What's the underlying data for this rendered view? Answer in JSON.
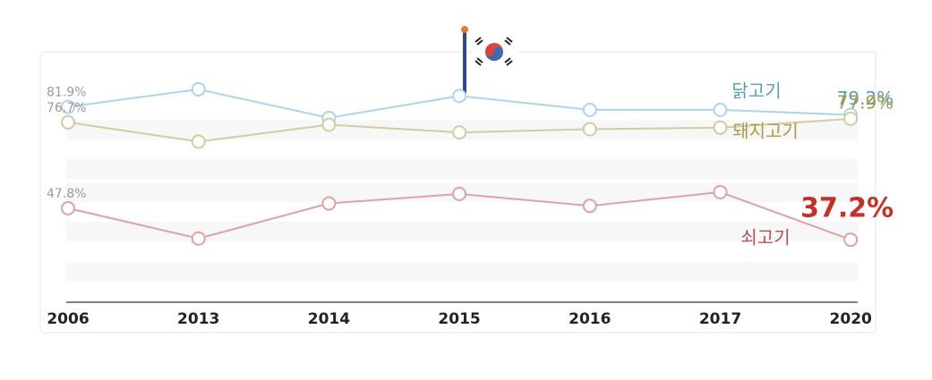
{
  "chart_data": {
    "type": "line",
    "categories": [
      "2006",
      "2013",
      "2014",
      "2015",
      "2016",
      "2017",
      "2020"
    ],
    "series": [
      {
        "name": "닭고기",
        "color": "#a9d6e8",
        "label_color": "#5b9cb8",
        "values": [
          81.9,
          87.8,
          78.2,
          85.6,
          80.9,
          80.9,
          79.2
        ],
        "value_labels": [
          "81.9%",
          null,
          null,
          null,
          null,
          null,
          "79.2%"
        ]
      },
      {
        "name": "돼지고기",
        "color": "#d3cba2",
        "label_color": "#a59e4a",
        "values": [
          76.7,
          70.2,
          75.9,
          73.3,
          74.4,
          74.9,
          77.9
        ],
        "value_labels": [
          "76.7%",
          null,
          null,
          null,
          null,
          null,
          "77.9%"
        ]
      },
      {
        "name": "쇠고기",
        "color": "#dfa2a2",
        "label_color": "#c4302a",
        "values": [
          47.8,
          37.6,
          49.4,
          52.6,
          48.6,
          53.2,
          37.2
        ],
        "value_labels": [
          "47.8%",
          null,
          null,
          null,
          null,
          null,
          "37.2%"
        ]
      }
    ],
    "ylim": [
      30,
      95
    ]
  }
}
